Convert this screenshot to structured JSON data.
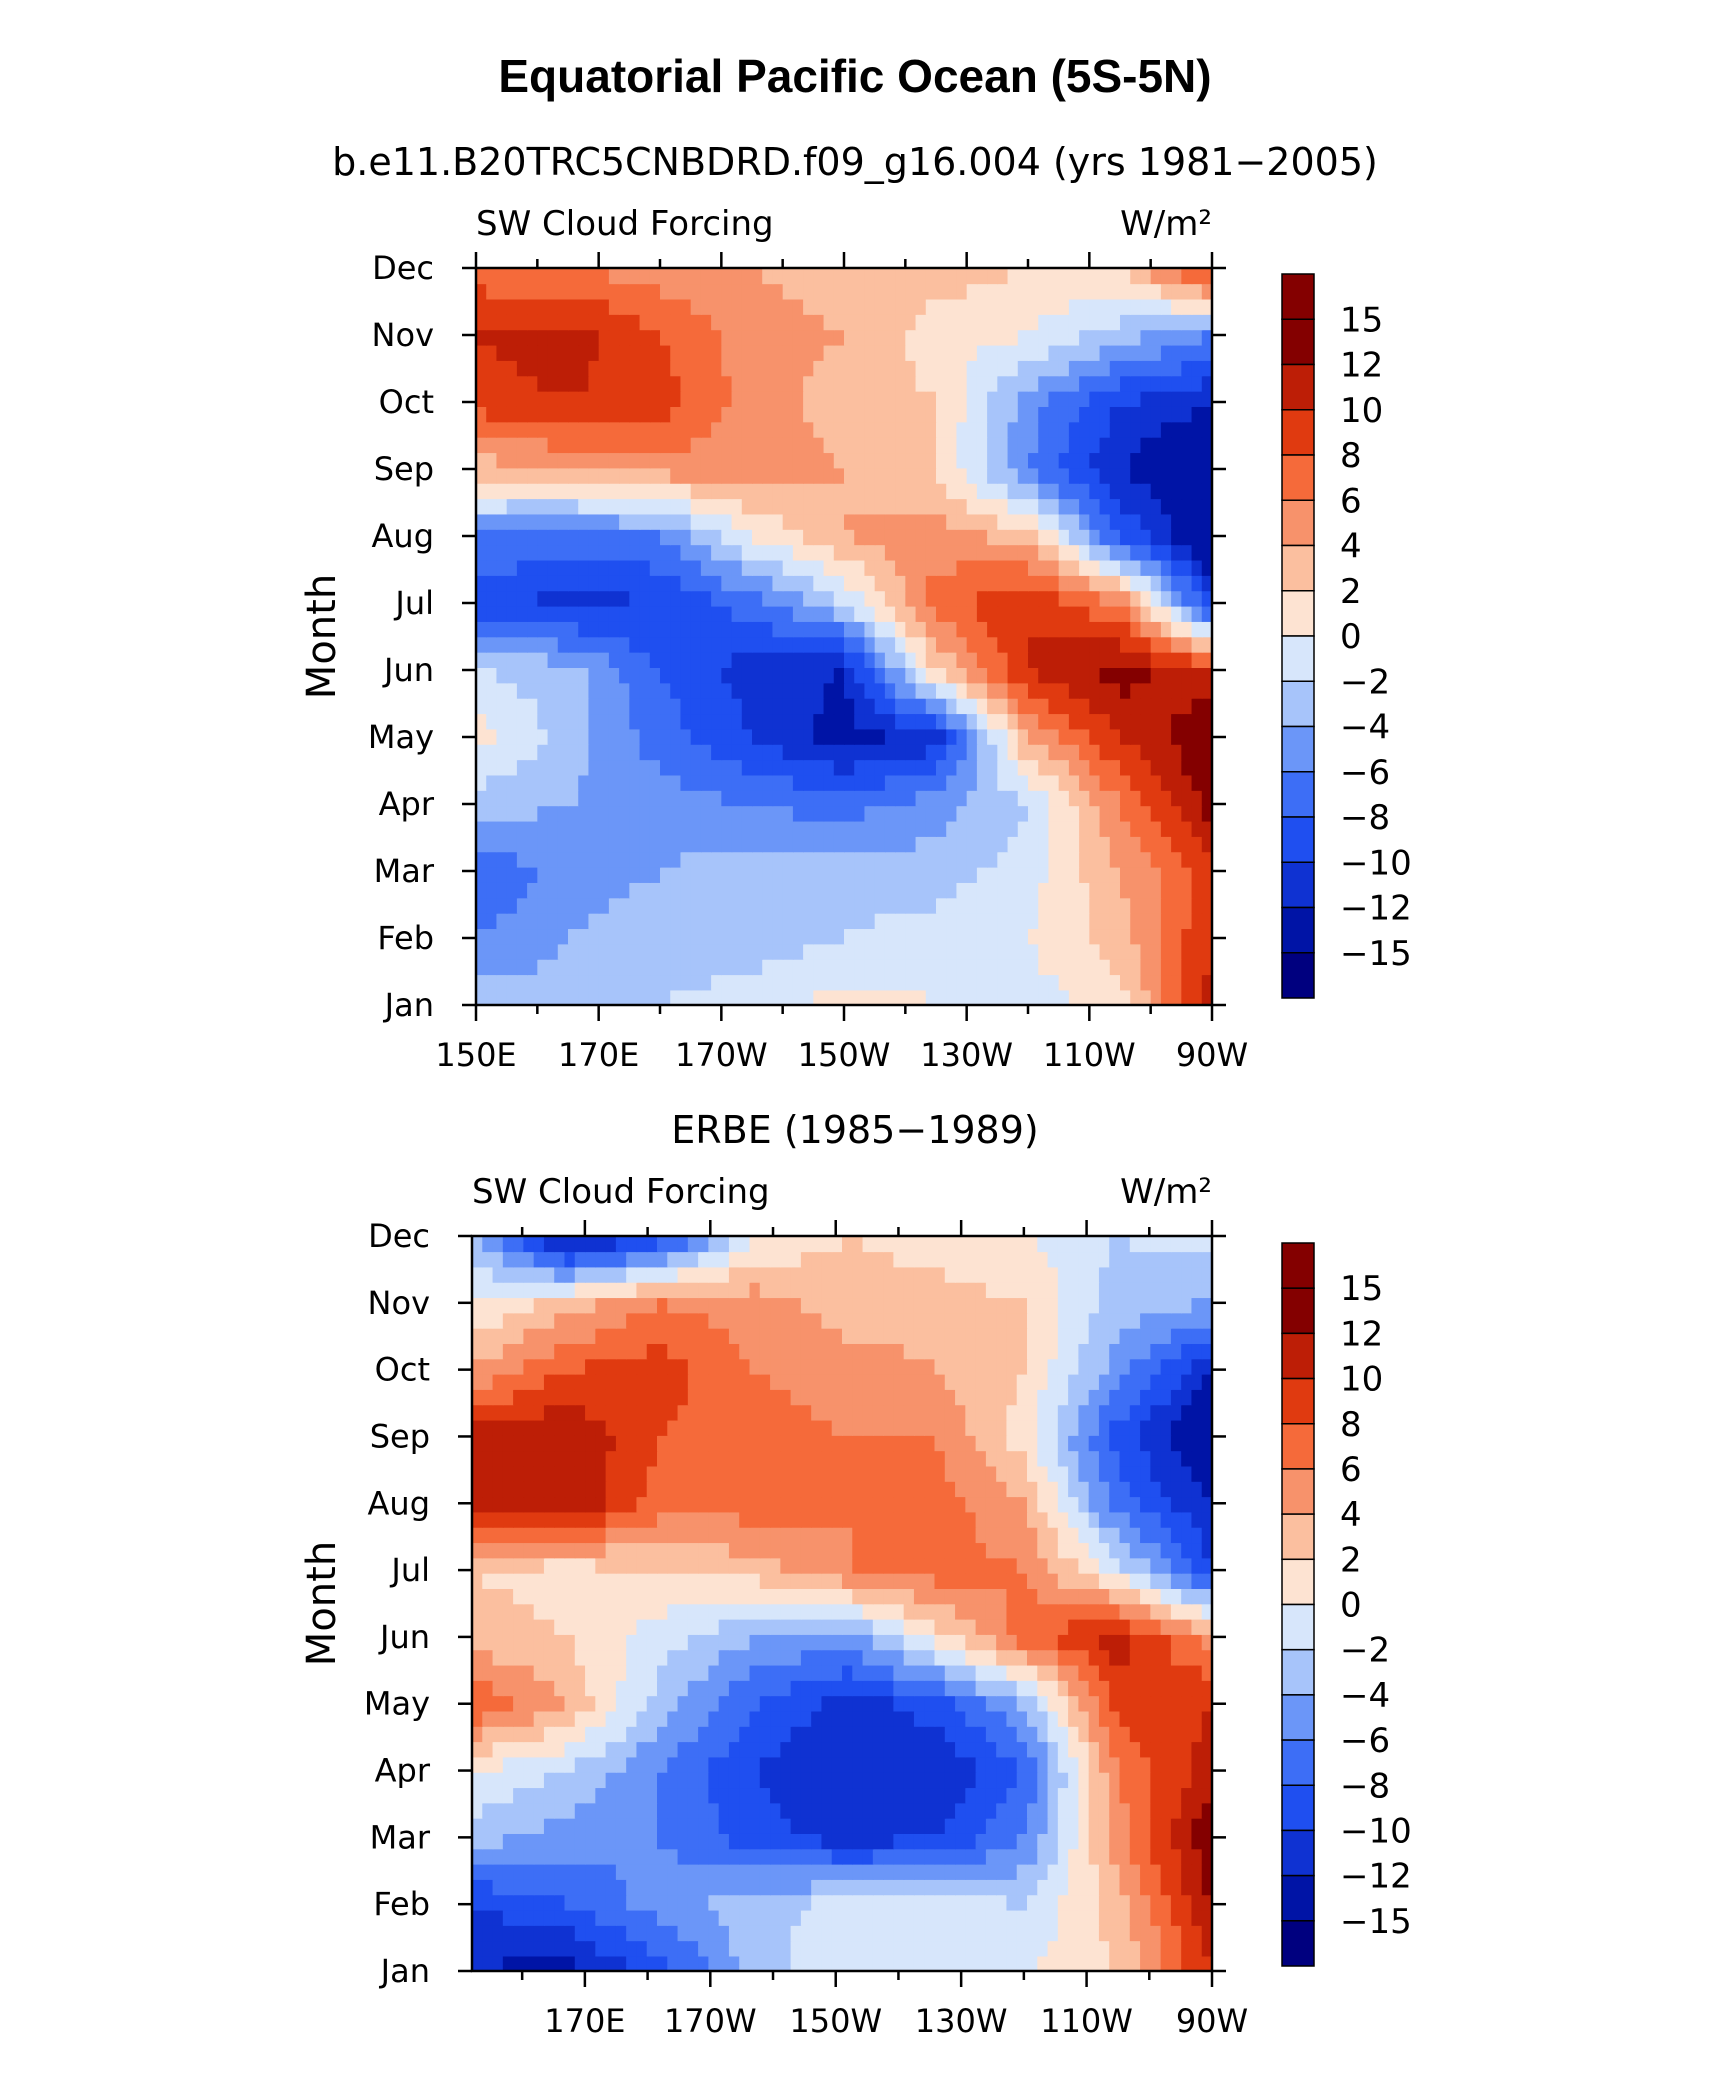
{
  "title": "Equatorial Pacific Ocean (5S-5N)",
  "panel_titles": {
    "top": "b.e11.B20TRC5CNBDRD.f09_g16.004 (yrs 1981−2005)",
    "bottom": "ERBE (1985−1989)"
  },
  "left_string": "SW Cloud Forcing",
  "right_string": "W/m²",
  "colorbar_labels": [
    "15",
    "12",
    "10",
    "8",
    "6",
    "4",
    "2",
    "0",
    "−2",
    "−4",
    "−6",
    "−8",
    "−10",
    "−12",
    "−15"
  ],
  "chart_data": [
    {
      "type": "heatmap",
      "title": "b.e11.B20TRC5CNBDRD.f09_g16.004 (yrs 1981−2005)",
      "left_string": "SW Cloud Forcing",
      "right_string": "W/m²",
      "xlabel": "",
      "ylabel": "Month",
      "x_ticks": [
        "150E",
        "170E",
        "170W",
        "150W",
        "130W",
        "110W",
        "90W"
      ],
      "y_ticks": [
        "Jan",
        "Feb",
        "Mar",
        "Apr",
        "May",
        "Jun",
        "Jul",
        "Aug",
        "Sep",
        "Oct",
        "Nov",
        "Dec"
      ],
      "x_range_lon": [
        150,
        270
      ],
      "levels": [
        -15,
        -12,
        -10,
        -8,
        -6,
        -4,
        -2,
        0,
        2,
        4,
        6,
        8,
        10,
        12,
        15
      ],
      "lons": [
        150,
        165,
        180,
        195,
        210,
        225,
        240,
        255,
        270
      ],
      "months": [
        "Jan",
        "Feb",
        "Mar",
        "Apr",
        "May",
        "Jun",
        "Jul",
        "Aug",
        "Sep",
        "Oct",
        "Nov",
        "Dec"
      ],
      "values": [
        [
          -3,
          -3,
          -2,
          -1,
          1,
          0,
          -1,
          1,
          11
        ],
        [
          -6,
          -4,
          -3,
          -3,
          -2,
          -1,
          0,
          3,
          10
        ],
        [
          -8,
          -5,
          -4,
          -3,
          -3,
          -3,
          -1,
          4,
          9
        ],
        [
          -3,
          -4,
          -5,
          -6,
          -7,
          -5,
          -2,
          6,
          13
        ],
        [
          1,
          -3,
          -7,
          -10,
          -13,
          -11,
          4,
          10,
          14
        ],
        [
          -2,
          -3,
          -8,
          -11,
          -12,
          2,
          10,
          13,
          10
        ],
        [
          -9,
          -11,
          -10,
          -7,
          -2,
          7,
          10,
          6,
          -10
        ],
        [
          -6,
          -7,
          -6,
          0,
          4,
          5,
          3,
          -8,
          -15
        ],
        [
          3,
          4,
          5,
          5,
          4,
          2,
          -6,
          -12,
          -15
        ],
        [
          9,
          10,
          9,
          5,
          3,
          2,
          -5,
          -10,
          -12
        ],
        [
          10,
          11,
          8,
          5,
          4,
          1,
          0,
          -3,
          -6
        ],
        [
          7,
          6,
          5,
          4,
          3,
          3,
          2,
          2,
          10
        ]
      ]
    },
    {
      "type": "heatmap",
      "title": "ERBE (1985−1989)",
      "left_string": "SW Cloud Forcing",
      "right_string": "W/m²",
      "xlabel": "",
      "ylabel": "Month",
      "x_ticks": [
        "170E",
        "170W",
        "150W",
        "130W",
        "110W",
        "90W"
      ],
      "y_ticks": [
        "Jan",
        "Feb",
        "Mar",
        "Apr",
        "May",
        "Jun",
        "Jul",
        "Aug",
        "Sep",
        "Oct",
        "Nov",
        "Dec"
      ],
      "x_range_lon": [
        152,
        270
      ],
      "levels": [
        -15,
        -12,
        -10,
        -8,
        -6,
        -4,
        -2,
        0,
        2,
        4,
        6,
        8,
        10,
        12,
        15
      ],
      "lons": [
        152,
        167,
        182,
        197,
        212,
        226,
        240,
        255,
        270
      ],
      "months": [
        "Jan",
        "Feb",
        "Mar",
        "Apr",
        "May",
        "Jun",
        "Jul",
        "Aug",
        "Sep",
        "Oct",
        "Nov",
        "Dec"
      ],
      "values": [
        [
          -12,
          -13,
          -9,
          -3,
          0,
          0,
          0,
          2,
          10
        ],
        [
          -10,
          -8,
          -5,
          -3,
          -1,
          -1,
          -2,
          3,
          12
        ],
        [
          -3,
          -5,
          -6,
          -9,
          -11,
          -10,
          -6,
          5,
          14
        ],
        [
          0,
          -2,
          -6,
          -10,
          -12,
          -12,
          -8,
          6,
          11
        ],
        [
          8,
          4,
          -3,
          -8,
          -11,
          -9,
          -4,
          9,
          10
        ],
        [
          3,
          2,
          -1,
          -4,
          -5,
          1,
          7,
          11,
          5
        ],
        [
          2,
          1,
          2,
          3,
          6,
          7,
          6,
          -1,
          -10
        ],
        [
          10,
          12,
          7,
          7,
          6,
          7,
          4,
          -7,
          -12
        ],
        [
          11,
          12,
          8,
          7,
          6,
          6,
          1,
          -9,
          -15
        ],
        [
          4,
          8,
          9,
          6,
          5,
          4,
          2,
          -5,
          -12
        ],
        [
          0,
          3,
          6,
          5,
          3,
          3,
          2,
          -3,
          -4
        ],
        [
          -3,
          -14,
          -10,
          0,
          2,
          1,
          0,
          -2,
          -1
        ]
      ]
    }
  ]
}
